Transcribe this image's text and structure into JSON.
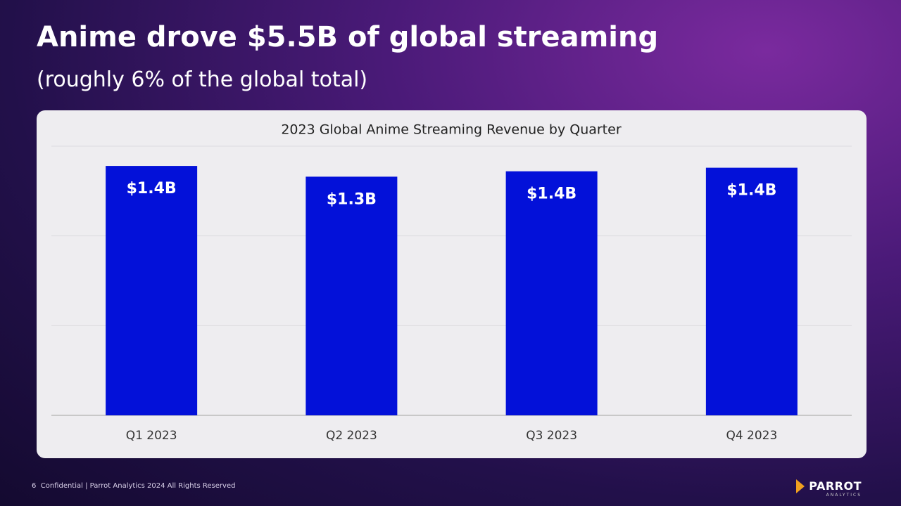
{
  "slide": {
    "title": "Anime drove $5.5B of global streaming",
    "subtitle": "(roughly 6% of the global total)",
    "footer": {
      "page": "6",
      "text": "Confidential | Parrot Analytics 2024 All Rights Reserved"
    },
    "logo": {
      "name": "PARROT",
      "tagline": "ANALYTICS"
    }
  },
  "chart_data": {
    "type": "bar",
    "title": "2023 Global Anime Streaming Revenue by Quarter",
    "categories": [
      "Q1 2023",
      "Q2 2023",
      "Q3 2023",
      "Q4 2023"
    ],
    "values": [
      1.39,
      1.33,
      1.36,
      1.38
    ],
    "value_labels": [
      "$1.4B",
      "$1.3B",
      "$1.4B",
      "$1.4B"
    ],
    "color": "#0311d9",
    "ylim": [
      0,
      1.5
    ],
    "yticks": [
      0,
      0.5,
      1,
      1.5
    ],
    "grid": true
  }
}
